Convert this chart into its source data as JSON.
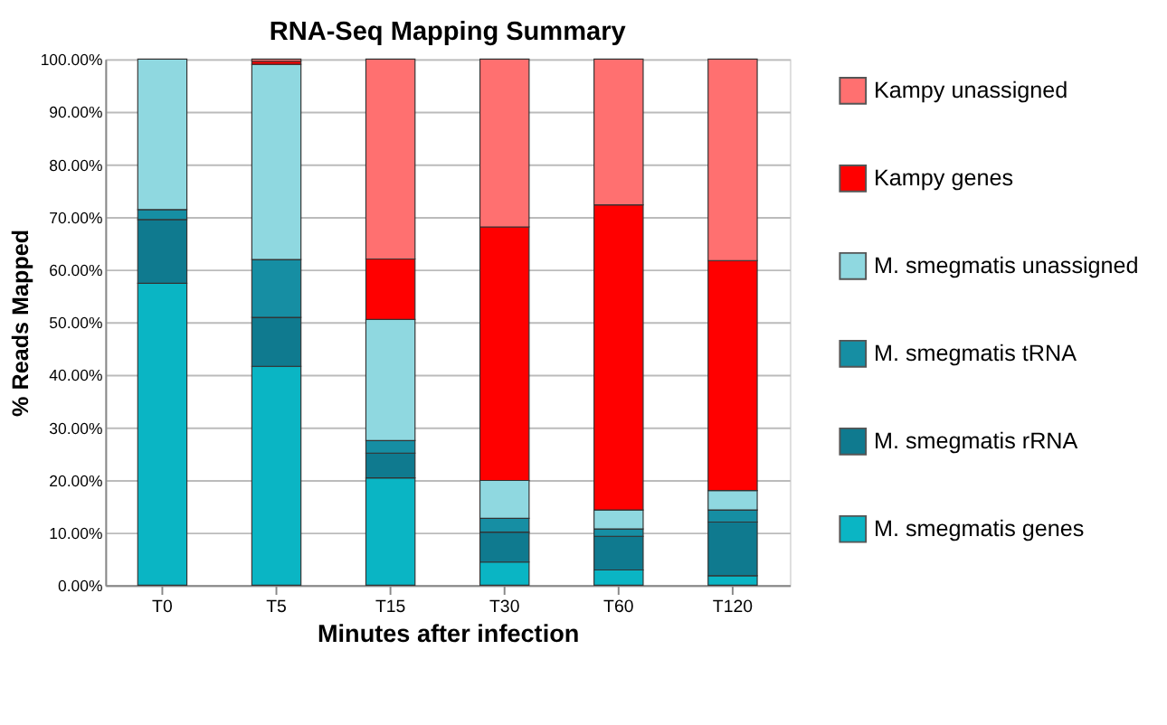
{
  "chart_data": {
    "type": "bar",
    "title": "RNA-Seq Mapping Summary",
    "xlabel": "Minutes after infection",
    "ylabel": "% Reads Mapped",
    "categories": [
      "T0",
      "T5",
      "T15",
      "T30",
      "T60",
      "T120"
    ],
    "stacked": true,
    "series": [
      {
        "name": "M. smegmatis genes",
        "color": "#0ab5c4",
        "values": [
          57.4,
          41.6,
          20.4,
          4.4,
          2.9,
          1.8
        ]
      },
      {
        "name": "M. smegmatis rRNA",
        "color": "#0f7a8f",
        "values": [
          12.1,
          9.3,
          4.7,
          5.7,
          6.4,
          10.2
        ]
      },
      {
        "name": "M. smegmatis tRNA",
        "color": "#168ea3",
        "values": [
          1.9,
          11.0,
          2.4,
          2.6,
          1.4,
          2.3
        ]
      },
      {
        "name": "M. smegmatis unassigned",
        "color": "#8fd8e0",
        "values": [
          28.6,
          37.1,
          23.0,
          7.2,
          3.6,
          3.7
        ]
      },
      {
        "name": "Kampy genes",
        "color": "#ff0000",
        "values": [
          null,
          0.6,
          11.5,
          48.2,
          58.0,
          43.7
        ]
      },
      {
        "name": "Kampy unassigned",
        "color": "#ff7070",
        "values": [
          null,
          0.4,
          38.0,
          31.9,
          27.7,
          38.3
        ]
      }
    ],
    "ylim": [
      0,
      100
    ],
    "yticks": [
      {
        "value": 0,
        "label": "0.00%"
      },
      {
        "value": 10,
        "label": "10.00%"
      },
      {
        "value": 20,
        "label": "20.00%"
      },
      {
        "value": 30,
        "label": "30.00%"
      },
      {
        "value": 40,
        "label": "40.00%"
      },
      {
        "value": 50,
        "label": "50.00%"
      },
      {
        "value": 60,
        "label": "60.00%"
      },
      {
        "value": 70,
        "label": "70.00%"
      },
      {
        "value": 80,
        "label": "80.00%"
      },
      {
        "value": 90,
        "label": "90.00%"
      },
      {
        "value": 100,
        "label": "100.00%"
      }
    ],
    "grid": "y",
    "legend": "right"
  }
}
